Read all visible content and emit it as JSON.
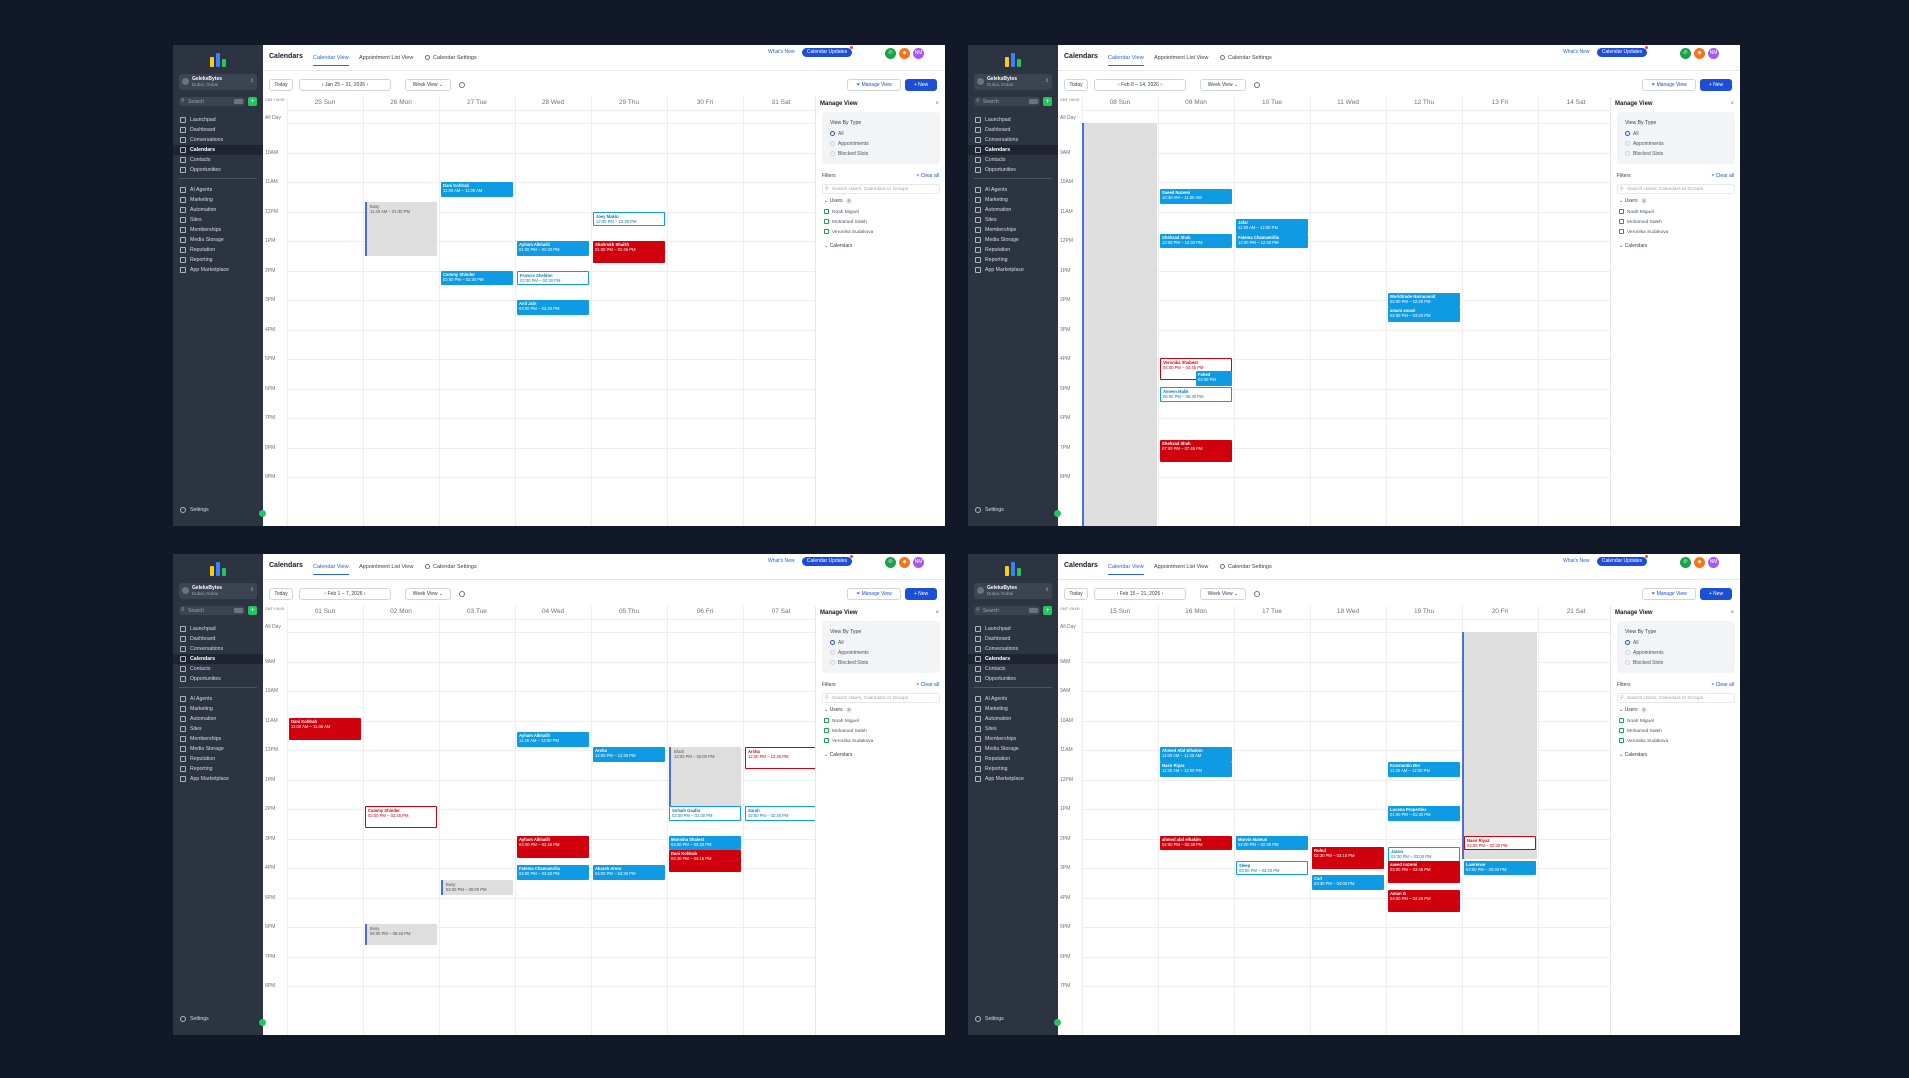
{
  "app": {
    "title": "Calendars",
    "tabs": [
      "Calendar View",
      "Appointment List View",
      "Calendar Settings"
    ],
    "whats_new": "What's New",
    "updates_badge": "Calendar Updates",
    "avatar_initials": "NM",
    "account_name": "GeleksBytes",
    "account_sub": "Dubai, Dubai",
    "search_placeholder": "Search",
    "nav": [
      "Launchpad",
      "Dashboard",
      "Conversations",
      "Calendars",
      "Contacts",
      "Opportunities",
      "AI Agents",
      "Marketing",
      "Automation",
      "Sites",
      "Memberships",
      "Media Storage",
      "Reputation",
      "Reporting",
      "App Marketplace"
    ],
    "settings": "Settings",
    "today": "Today",
    "week_view": "Week View",
    "manage_view": "Manage View",
    "new": "+ New",
    "gmt": "GMT +04:00",
    "all_day": "All Day"
  },
  "panel": {
    "title": "Manage View",
    "view_by_type": "View By Type",
    "options": [
      "All",
      "Appointments",
      "Blocked Slots"
    ],
    "filters": "Filters",
    "clear_all": "Clear all",
    "search_placeholder": "Search Users, Calendars or Groups",
    "users_label": "Users",
    "users_count": "3",
    "users": [
      "Noah Miguel",
      "Mohamed Saleh",
      "Veronika Sudakova"
    ],
    "calendars_label": "Calendars"
  },
  "screens": [
    {
      "date_range": "Jan 25 – 31, 2026",
      "days": [
        "25 Sun",
        "26 Mon",
        "27 Tue",
        "28 Wed",
        "29 Thu",
        "30 Fri",
        "31 Sat"
      ],
      "hours": [
        "10AM",
        "11AM",
        "12PM",
        "1PM",
        "2PM",
        "3PM",
        "4PM",
        "5PM",
        "6PM",
        "7PM",
        "8PM",
        "9PM"
      ],
      "events": [
        {
          "name": "Busy",
          "time": "11:40 AM – 01:30 PM",
          "style": "blocked",
          "day": 1,
          "start": 11.67,
          "end": 13.5
        },
        {
          "name": "Dani Kohlrab",
          "time": "11:00 AM – 11:30 AM",
          "style": "blue",
          "day": 2,
          "start": 11.0,
          "end": 11.5
        },
        {
          "name": "Joey Makin",
          "time": "12:00 PM – 12:30 PM",
          "style": "oblue",
          "day": 4,
          "start": 12.0,
          "end": 12.5
        },
        {
          "name": "Ayham Alkhalili",
          "time": "01:00 PM – 01:30 PM",
          "style": "blue",
          "day": 3,
          "start": 13.0,
          "end": 13.5
        },
        {
          "name": "Shahrukh Shaikh",
          "time": "01:00 PM – 01:45 PM",
          "style": "red",
          "day": 4,
          "start": 13.0,
          "end": 13.75
        },
        {
          "name": "Cammy Shinder",
          "time": "02:00 PM – 02:30 PM",
          "style": "blue",
          "day": 2,
          "start": 14.0,
          "end": 14.5
        },
        {
          "name": "Francis Sheldon",
          "time": "02:00 PM – 02:30 PM",
          "style": "oblue",
          "day": 3,
          "start": 14.0,
          "end": 14.5
        },
        {
          "name": "Anil Jain",
          "time": "03:00 PM – 03:30 PM",
          "style": "blue",
          "day": 3,
          "start": 15.0,
          "end": 15.5
        }
      ]
    },
    {
      "date_range": "Feb 8 – 14, 2026",
      "days": [
        "08 Sun",
        "09 Mon",
        "10 Tue",
        "11 Wed",
        "12 Thu",
        "13 Fri",
        "14 Sat"
      ],
      "hours": [
        "9AM",
        "10AM",
        "11AM",
        "12PM",
        "1PM",
        "2PM",
        "3PM",
        "4PM",
        "5PM",
        "6PM",
        "7PM",
        "8PM"
      ],
      "blocked_day": 0,
      "events": [
        {
          "name": "Saeed Nazemi",
          "time": "10:30 AM – 11:00 AM",
          "style": "blue",
          "day": 1,
          "start": 10.25,
          "end": 10.75
        },
        {
          "name": "Jafar",
          "time": "11:30 AM – 12:00 PM",
          "style": "blue",
          "day": 2,
          "start": 11.25,
          "end": 11.75
        },
        {
          "name": "Shehzad Shah",
          "time": "12:00 PM – 12:30 PM",
          "style": "blue",
          "day": 1,
          "start": 11.75,
          "end": 12.25
        },
        {
          "name": "Fatema Chamamrilla",
          "time": "12:00 PM – 12:30 PM",
          "style": "blue",
          "day": 2,
          "start": 11.75,
          "end": 12.25
        },
        {
          "name": "Worldtrade Narraconid",
          "time": "02:00 PM – 02:30 PM",
          "style": "blue",
          "day": 4,
          "start": 13.75,
          "end": 14.25
        },
        {
          "name": "amani amani",
          "time": "02:00 PM – 03:00 PM",
          "style": "blue",
          "day": 4,
          "start": 14.25,
          "end": 14.75
        },
        {
          "name": "Veronika Shabest",
          "time": "04:00 PM – 04:45 PM",
          "style": "ored",
          "day": 1,
          "start": 15.95,
          "end": 16.7
        },
        {
          "name": "Fahed",
          "time": "04:30 PM",
          "style": "blue",
          "day": 1,
          "start": 16.4,
          "end": 16.9,
          "offset": 0.5
        },
        {
          "name": "Ameen Malik",
          "time": "05:00 PM – 05:30 PM",
          "style": "oblue",
          "day": 1,
          "start": 16.95,
          "end": 17.45
        },
        {
          "name": "Shehzad Shah",
          "time": "07:00 PM – 07:45 PM",
          "style": "red",
          "day": 1,
          "start": 18.75,
          "end": 19.5
        }
      ]
    },
    {
      "date_range": "Feb 1 – 7, 2026",
      "days": [
        "01 Sun",
        "02 Mon",
        "03 Tue",
        "04 Wed",
        "05 Thu",
        "06 Fri",
        "07 Sat"
      ],
      "hours": [
        "9AM",
        "10AM",
        "11AM",
        "12PM",
        "1PM",
        "2PM",
        "3PM",
        "4PM",
        "5PM",
        "6PM",
        "7PM",
        "8PM"
      ],
      "events": [
        {
          "name": "Dani Kohlrab",
          "time": "11:00 AM – 11:45 AM",
          "style": "red",
          "day": 0,
          "start": 10.9,
          "end": 11.65
        },
        {
          "name": "Ayham Alkhalili",
          "time": "11:30 AM – 12:00 PM",
          "style": "blue",
          "day": 3,
          "start": 11.4,
          "end": 11.9
        },
        {
          "name": "Arsha",
          "time": "12:00 PM – 12:30 PM",
          "style": "blue",
          "day": 4,
          "start": 11.9,
          "end": 12.4
        },
        {
          "name": "Block",
          "time": "12:00 PM – 02:00 PM",
          "style": "blocked",
          "day": 5,
          "start": 11.9,
          "end": 13.9
        },
        {
          "name": "Arsha",
          "time": "12:00 PM – 12:45 PM",
          "style": "ored",
          "day": 6,
          "start": 11.9,
          "end": 12.65
        },
        {
          "name": "Cammy Shinder",
          "time": "02:00 PM – 02:45 PM",
          "style": "ored",
          "day": 1,
          "start": 13.9,
          "end": 14.65
        },
        {
          "name": "Sohaib Gaafar",
          "time": "02:00 PM – 02:30 PM",
          "style": "oblue",
          "day": 5,
          "start": 13.9,
          "end": 14.4
        },
        {
          "name": "Sarah",
          "time": "02:00 PM – 02:30 PM",
          "style": "oblue",
          "day": 6,
          "start": 13.9,
          "end": 14.4
        },
        {
          "name": "Ayham Alkhalili",
          "time": "03:00 PM – 03:45 PM",
          "style": "red",
          "day": 3,
          "start": 14.9,
          "end": 15.65
        },
        {
          "name": "Monisha Shalest",
          "time": "03:00 PM – 03:30 PM",
          "style": "blue",
          "day": 5,
          "start": 14.9,
          "end": 15.4
        },
        {
          "name": "Dani Kohlrab",
          "time": "03:30 PM – 04:15 PM",
          "style": "red",
          "day": 5,
          "start": 15.4,
          "end": 16.15
        },
        {
          "name": "Fatema Chamamrilla",
          "time": "04:00 PM – 04:30 PM",
          "style": "blue",
          "day": 3,
          "start": 15.9,
          "end": 16.4
        },
        {
          "name": "Akarsh Arora",
          "time": "04:00 PM – 04:30 PM",
          "style": "blue",
          "day": 4,
          "start": 15.9,
          "end": 16.4
        },
        {
          "name": "Busy",
          "time": "04:30 PM – 05:00 PM",
          "style": "blocked",
          "day": 2,
          "start": 16.4,
          "end": 16.9
        },
        {
          "name": "Busy",
          "time": "06:00 PM – 06:40 PM",
          "style": "blocked",
          "day": 1,
          "start": 17.9,
          "end": 18.6
        }
      ]
    },
    {
      "date_range": "Feb 15 – 21, 2026",
      "days": [
        "15 Sun",
        "16 Mon",
        "17 Tue",
        "18 Wed",
        "19 Thu",
        "20 Fri",
        "21 Sat"
      ],
      "hours": [
        "8AM",
        "9AM",
        "10AM",
        "11AM",
        "12PM",
        "1PM",
        "2PM",
        "3PM",
        "4PM",
        "5PM",
        "6PM",
        "7PM"
      ],
      "blocked_day": 5,
      "blocked_end": 14.7,
      "events": [
        {
          "name": "Ahmed Abd Elhakim",
          "time": "11:00 AM – 11:30 AM",
          "style": "blue",
          "day": 1,
          "start": 10.9,
          "end": 11.4
        },
        {
          "name": "Nasir Riyaz",
          "time": "11:30 AM – 12:00 PM",
          "style": "blue",
          "day": 1,
          "start": 11.4,
          "end": 11.9
        },
        {
          "name": "Konstantin Bor",
          "time": "11:30 AM – 12:00 PM",
          "style": "blue",
          "day": 4,
          "start": 11.4,
          "end": 11.9
        },
        {
          "name": "Lucena Properties",
          "time": "01:00 PM – 01:30 PM",
          "style": "blue",
          "day": 4,
          "start": 12.9,
          "end": 13.4
        },
        {
          "name": "ahmed abd elhakim",
          "time": "02:00 PM – 02:30 PM",
          "style": "red",
          "day": 1,
          "start": 13.9,
          "end": 14.4
        },
        {
          "name": "Marvin Mateus",
          "time": "02:00 PM – 02:30 PM",
          "style": "blue",
          "day": 2,
          "start": 13.9,
          "end": 14.4
        },
        {
          "name": "Nasir Riyaz",
          "time": "02:00 PM – 02:30 PM",
          "style": "ored",
          "day": 5,
          "start": 13.9,
          "end": 14.4
        },
        {
          "name": "Ruhul",
          "time": "02:30 PM – 03:15 PM",
          "style": "red",
          "day": 3,
          "start": 14.3,
          "end": 15.05
        },
        {
          "name": "Jason",
          "time": "02:30 PM – 03:00 PM",
          "style": "oblue",
          "day": 4,
          "start": 14.3,
          "end": 14.8
        },
        {
          "name": "Sleep",
          "time": "03:00 PM – 03:30 PM",
          "style": "oblue",
          "day": 2,
          "start": 14.75,
          "end": 15.25
        },
        {
          "name": "saeed nazemi",
          "time": "03:00 PM – 03:45 PM",
          "style": "red",
          "day": 4,
          "start": 14.75,
          "end": 15.5
        },
        {
          "name": "Lawrence",
          "time": "03:00 PM – 03:30 PM",
          "style": "blue",
          "day": 5,
          "start": 14.75,
          "end": 15.25
        },
        {
          "name": "Carl",
          "time": "03:30 PM – 04:00 PM",
          "style": "blue",
          "day": 3,
          "start": 15.25,
          "end": 15.75
        },
        {
          "name": "Aman G",
          "time": "04:00 PM – 04:45 PM",
          "style": "red",
          "day": 4,
          "start": 15.75,
          "end": 16.5
        }
      ]
    }
  ]
}
